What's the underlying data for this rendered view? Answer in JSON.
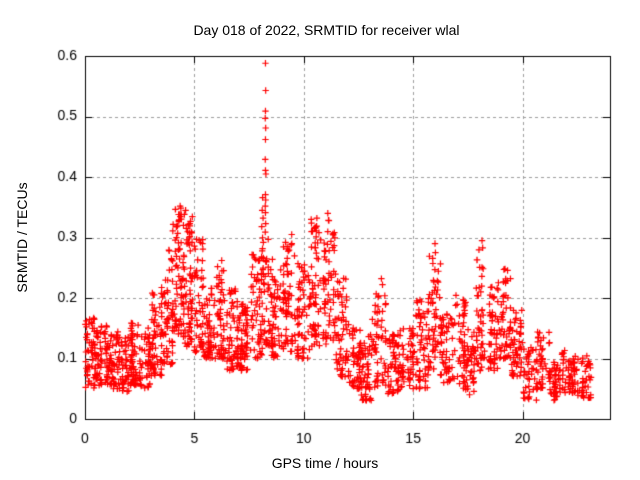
{
  "chart_data": {
    "type": "scatter",
    "title": "Day 018 of 2022, SRMTID for receiver wlal",
    "xlabel": "GPS time / hours",
    "ylabel": "SRMTID / TECUs",
    "xlim": [
      0,
      24
    ],
    "ylim": [
      0,
      0.6
    ],
    "xticks": [
      0,
      5,
      10,
      15,
      20
    ],
    "yticks": [
      0,
      0.1,
      0.2,
      0.3,
      0.4,
      0.5,
      0.6
    ],
    "grid": true,
    "grid_style": "dashed",
    "legend": "none",
    "marker": "+",
    "marker_color": "#ff0000",
    "grid_color": "#9e9e9e",
    "axis_color": "#000000",
    "background": "#ffffff",
    "series": [
      {
        "name": "SRMTID",
        "description": "dense scatter of + markers; envelope segments give [x_start, x_end, y_min, y_max, point_count]",
        "envelope_segments": [
          [
            0.0,
            0.5,
            0.05,
            0.17,
            60
          ],
          [
            0.5,
            1.0,
            0.055,
            0.155,
            55
          ],
          [
            1.0,
            1.5,
            0.05,
            0.14,
            55
          ],
          [
            1.5,
            2.0,
            0.045,
            0.145,
            55
          ],
          [
            2.0,
            2.5,
            0.055,
            0.16,
            55
          ],
          [
            2.5,
            3.0,
            0.05,
            0.155,
            50
          ],
          [
            3.0,
            3.5,
            0.07,
            0.21,
            55
          ],
          [
            3.5,
            4.0,
            0.09,
            0.28,
            60
          ],
          [
            4.0,
            4.5,
            0.13,
            0.35,
            70
          ],
          [
            4.5,
            5.0,
            0.12,
            0.34,
            70
          ],
          [
            5.0,
            5.4,
            0.11,
            0.3,
            50
          ],
          [
            5.4,
            5.9,
            0.1,
            0.22,
            50
          ],
          [
            5.9,
            6.4,
            0.1,
            0.26,
            55
          ],
          [
            6.4,
            7.0,
            0.08,
            0.22,
            60
          ],
          [
            7.0,
            7.6,
            0.08,
            0.2,
            60
          ],
          [
            7.6,
            8.1,
            0.1,
            0.28,
            55
          ],
          [
            8.1,
            8.45,
            0.12,
            0.3,
            40
          ],
          [
            8.45,
            9.0,
            0.1,
            0.285,
            55
          ],
          [
            9.0,
            9.7,
            0.11,
            0.3,
            65
          ],
          [
            9.7,
            10.3,
            0.1,
            0.26,
            60
          ],
          [
            10.3,
            10.85,
            0.12,
            0.33,
            60
          ],
          [
            10.85,
            11.45,
            0.12,
            0.33,
            65
          ],
          [
            11.45,
            12.0,
            0.07,
            0.24,
            55
          ],
          [
            12.0,
            12.6,
            0.05,
            0.165,
            55
          ],
          [
            12.6,
            13.1,
            0.03,
            0.15,
            50
          ],
          [
            13.1,
            13.75,
            0.05,
            0.21,
            55
          ],
          [
            13.75,
            14.4,
            0.04,
            0.14,
            55
          ],
          [
            14.4,
            15.1,
            0.05,
            0.15,
            55
          ],
          [
            15.1,
            15.7,
            0.05,
            0.2,
            55
          ],
          [
            15.7,
            16.25,
            0.08,
            0.28,
            55
          ],
          [
            16.25,
            16.9,
            0.06,
            0.18,
            55
          ],
          [
            16.9,
            17.4,
            0.05,
            0.21,
            45
          ],
          [
            17.4,
            17.85,
            0.04,
            0.15,
            40
          ],
          [
            17.85,
            18.35,
            0.08,
            0.29,
            50
          ],
          [
            18.35,
            18.95,
            0.08,
            0.23,
            50
          ],
          [
            18.95,
            19.45,
            0.1,
            0.25,
            50
          ],
          [
            19.45,
            20.05,
            0.07,
            0.18,
            50
          ],
          [
            20.05,
            20.65,
            0.03,
            0.12,
            45
          ],
          [
            20.65,
            21.25,
            0.05,
            0.145,
            45
          ],
          [
            21.25,
            21.65,
            0.03,
            0.095,
            35
          ],
          [
            21.65,
            22.35,
            0.04,
            0.12,
            50
          ],
          [
            22.35,
            23.2,
            0.035,
            0.105,
            55
          ]
        ],
        "outlier_points": [
          [
            8.25,
            0.588
          ],
          [
            8.26,
            0.543
          ],
          [
            8.25,
            0.509
          ],
          [
            8.24,
            0.497
          ],
          [
            8.26,
            0.481
          ],
          [
            8.25,
            0.462
          ],
          [
            8.24,
            0.429
          ],
          [
            8.25,
            0.411
          ],
          [
            8.27,
            0.405
          ],
          [
            8.25,
            0.371
          ],
          [
            8.26,
            0.362
          ],
          [
            8.24,
            0.352
          ],
          [
            8.25,
            0.341
          ],
          [
            8.26,
            0.323
          ],
          [
            8.24,
            0.309
          ],
          [
            8.12,
            0.366
          ],
          [
            8.1,
            0.345
          ],
          [
            8.14,
            0.332
          ],
          [
            8.08,
            0.318
          ],
          [
            4.35,
            0.352
          ],
          [
            4.6,
            0.345
          ],
          [
            4.28,
            0.338
          ],
          [
            3.85,
            0.278
          ],
          [
            6.25,
            0.262
          ],
          [
            9.45,
            0.305
          ],
          [
            10.6,
            0.332
          ],
          [
            11.1,
            0.34
          ],
          [
            11.15,
            0.328
          ],
          [
            13.55,
            0.232
          ],
          [
            13.6,
            0.222
          ],
          [
            16.0,
            0.29
          ],
          [
            16.02,
            0.275
          ],
          [
            18.15,
            0.295
          ],
          [
            18.18,
            0.283
          ],
          [
            19.2,
            0.248
          ]
        ]
      }
    ]
  }
}
